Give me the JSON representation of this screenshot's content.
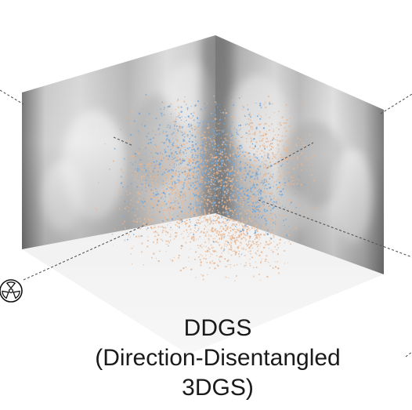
{
  "caption": {
    "line1": "DDGS",
    "line2": "(Direction-Disentangled",
    "line3": "3DGS)"
  },
  "colors": {
    "gaussians_primary": "#e8b894",
    "gaussians_secondary": "#6fa7dd",
    "floor": "#eeeeee",
    "ray_line": "#555555",
    "icon_stroke": "#111111"
  },
  "icons": {
    "source": "radiation-icon"
  }
}
